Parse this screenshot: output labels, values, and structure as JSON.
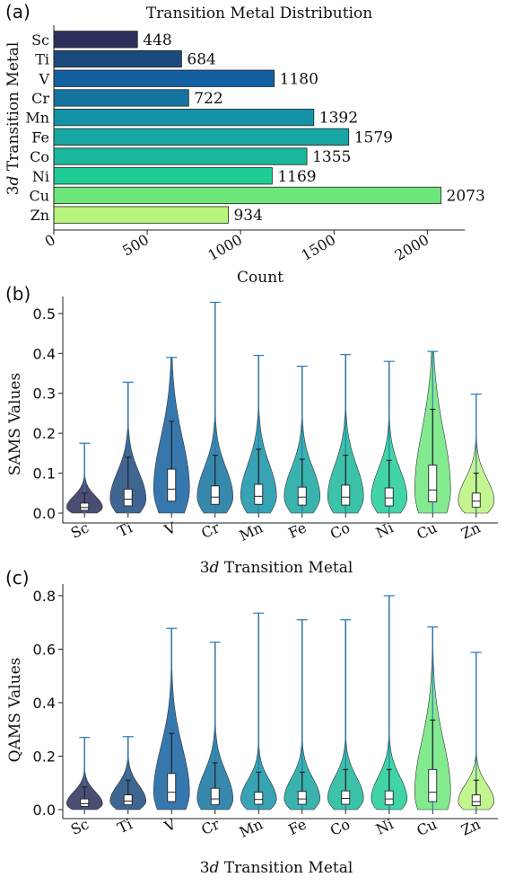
{
  "colors": {
    "Sc": "#2b2f5a",
    "Ti": "#1d4a7e",
    "V": "#1360a0",
    "Cr": "#14739f",
    "Mn": "#1493a7",
    "Fe": "#17a6a1",
    "Co": "#1ab79a",
    "Ni": "#1fcc96",
    "Cu": "#6fe67c",
    "Zn": "#b8f57c",
    "whisker": "#2a7ab5",
    "box_face": "#ffffff",
    "box_edge": "#222222"
  },
  "chart_data": [
    {
      "panel": "(a)",
      "type": "bar",
      "orientation": "horizontal",
      "title": "Transition Metal Distribution",
      "xlabel": "Count",
      "ylabel_prefix": "3",
      "ylabel_italic": "d",
      "ylabel_suffix": " Transition Metal",
      "categories": [
        "Sc",
        "Ti",
        "V",
        "Cr",
        "Mn",
        "Fe",
        "Co",
        "Ni",
        "Cu",
        "Zn"
      ],
      "values": [
        448,
        684,
        1180,
        722,
        1392,
        1579,
        1355,
        1169,
        2073,
        934
      ],
      "value_labels": [
        "448",
        "684",
        "1180",
        "722",
        "1392",
        "1579",
        "1355",
        "1169",
        "2073",
        "934"
      ],
      "xlim": [
        0,
        2200
      ],
      "xticks": [
        0,
        500,
        1000,
        1500,
        2000
      ],
      "xtick_labels": [
        "0",
        "500",
        "1000",
        "1500",
        "2000"
      ]
    },
    {
      "panel": "(b)",
      "type": "violin",
      "xlabel_prefix": "3",
      "xlabel_italic": "d",
      "xlabel_suffix": " Transition Metal",
      "ylabel": "SAMS Values",
      "categories": [
        "Sc",
        "Ti",
        "V",
        "Cr",
        "Mn",
        "Fe",
        "Co",
        "Ni",
        "Cu",
        "Zn"
      ],
      "ylim": [
        0,
        0.52
      ],
      "yticks": [
        0.0,
        0.1,
        0.2,
        0.3,
        0.4,
        0.5
      ],
      "ytick_labels": [
        "0.0",
        "0.1",
        "0.2",
        "0.3",
        "0.4",
        "0.5"
      ],
      "stats": [
        {
          "min": 0.0,
          "q1": 0.007,
          "median": 0.014,
          "q3": 0.025,
          "whisker_hi": 0.05,
          "max": 0.175
        },
        {
          "min": 0.0,
          "q1": 0.018,
          "median": 0.035,
          "q3": 0.06,
          "whisker_hi": 0.14,
          "max": 0.328
        },
        {
          "min": 0.0,
          "q1": 0.03,
          "median": 0.06,
          "q3": 0.11,
          "whisker_hi": 0.23,
          "max": 0.39
        },
        {
          "min": 0.0,
          "q1": 0.022,
          "median": 0.04,
          "q3": 0.068,
          "whisker_hi": 0.145,
          "max": 0.528
        },
        {
          "min": 0.0,
          "q1": 0.022,
          "median": 0.042,
          "q3": 0.072,
          "whisker_hi": 0.16,
          "max": 0.395
        },
        {
          "min": 0.0,
          "q1": 0.02,
          "median": 0.04,
          "q3": 0.065,
          "whisker_hi": 0.135,
          "max": 0.368
        },
        {
          "min": 0.0,
          "q1": 0.02,
          "median": 0.04,
          "q3": 0.07,
          "whisker_hi": 0.145,
          "max": 0.397
        },
        {
          "min": 0.0,
          "q1": 0.018,
          "median": 0.038,
          "q3": 0.063,
          "whisker_hi": 0.132,
          "max": 0.38
        },
        {
          "min": 0.0,
          "q1": 0.028,
          "median": 0.058,
          "q3": 0.12,
          "whisker_hi": 0.26,
          "max": 0.405
        },
        {
          "min": 0.0,
          "q1": 0.015,
          "median": 0.03,
          "q3": 0.05,
          "whisker_hi": 0.1,
          "max": 0.298
        }
      ]
    },
    {
      "panel": "(c)",
      "type": "violin",
      "xlabel_prefix": "3",
      "xlabel_italic": "d",
      "xlabel_suffix": " Transition Metal",
      "ylabel": "QAMS Values",
      "categories": [
        "Sc",
        "Ti",
        "V",
        "Cr",
        "Mn",
        "Fe",
        "Co",
        "Ni",
        "Cu",
        "Zn"
      ],
      "ylim": [
        0,
        0.83
      ],
      "yticks": [
        0.0,
        0.2,
        0.4,
        0.6,
        0.8
      ],
      "ytick_labels": [
        "0.0",
        "0.2",
        "0.4",
        "0.6",
        "0.8"
      ],
      "stats": [
        {
          "min": 0.0,
          "q1": 0.012,
          "median": 0.022,
          "q3": 0.04,
          "whisker_hi": 0.085,
          "max": 0.27
        },
        {
          "min": 0.0,
          "q1": 0.018,
          "median": 0.032,
          "q3": 0.055,
          "whisker_hi": 0.11,
          "max": 0.273
        },
        {
          "min": 0.0,
          "q1": 0.03,
          "median": 0.065,
          "q3": 0.135,
          "whisker_hi": 0.285,
          "max": 0.678
        },
        {
          "min": 0.0,
          "q1": 0.018,
          "median": 0.04,
          "q3": 0.08,
          "whisker_hi": 0.175,
          "max": 0.626
        },
        {
          "min": 0.0,
          "q1": 0.02,
          "median": 0.038,
          "q3": 0.065,
          "whisker_hi": 0.14,
          "max": 0.735
        },
        {
          "min": 0.0,
          "q1": 0.02,
          "median": 0.04,
          "q3": 0.068,
          "whisker_hi": 0.14,
          "max": 0.71
        },
        {
          "min": 0.0,
          "q1": 0.02,
          "median": 0.042,
          "q3": 0.07,
          "whisker_hi": 0.15,
          "max": 0.71
        },
        {
          "min": 0.0,
          "q1": 0.018,
          "median": 0.04,
          "q3": 0.07,
          "whisker_hi": 0.15,
          "max": 0.8
        },
        {
          "min": 0.0,
          "q1": 0.03,
          "median": 0.065,
          "q3": 0.15,
          "whisker_hi": 0.335,
          "max": 0.683
        },
        {
          "min": 0.0,
          "q1": 0.015,
          "median": 0.03,
          "q3": 0.055,
          "whisker_hi": 0.11,
          "max": 0.588
        }
      ]
    }
  ]
}
